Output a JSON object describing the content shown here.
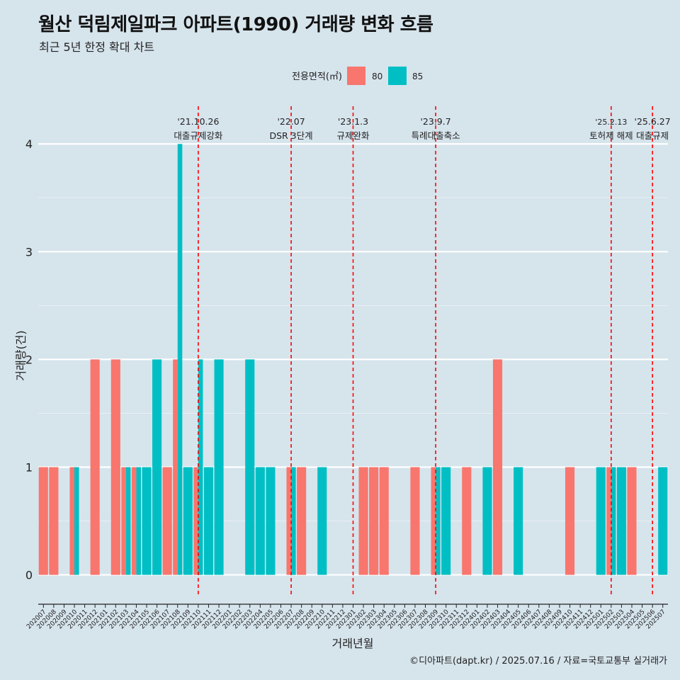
{
  "title": "월산 덕림제일파크 아파트(1990) 거래량 변화 흐름",
  "subtitle": "최근 5년 한정 확대 차트",
  "caption": "©디아파트(dapt.kr) / 2025.07.16 / 자료=국토교통부 실거래가",
  "colors": {
    "s80": "#f8766d",
    "s85": "#00bfc4",
    "bg": "#d6e4ec",
    "grid": "#ffffff",
    "vline": "#ff0000"
  },
  "chart_data": {
    "type": "bar",
    "xlabel": "거래년월",
    "ylabel": "거래량(건)",
    "ylim": [
      -0.2,
      4.35
    ],
    "yticks": [
      0,
      1,
      2,
      3,
      4
    ],
    "legend": {
      "title": "전용면적(㎡)",
      "position": "top",
      "entries": [
        "80",
        "85"
      ]
    },
    "grid": true,
    "categories": [
      "202007",
      "202008",
      "202009",
      "202010",
      "202011",
      "202012",
      "202101",
      "202102",
      "202103",
      "202104",
      "202105",
      "202106",
      "202107",
      "202108",
      "202109",
      "202110",
      "202111",
      "202112",
      "202201",
      "202202",
      "202203",
      "202204",
      "202205",
      "202206",
      "202207",
      "202208",
      "202209",
      "202210",
      "202211",
      "202212",
      "202301",
      "202302",
      "202303",
      "202304",
      "202305",
      "202306",
      "202307",
      "202308",
      "202309",
      "202310",
      "202311",
      "202312",
      "202401",
      "202402",
      "202403",
      "202404",
      "202405",
      "202406",
      "202407",
      "202408",
      "202409",
      "202410",
      "202411",
      "202412",
      "202501",
      "202502",
      "202503",
      "202504",
      "202505",
      "202506",
      "202507"
    ],
    "series": [
      {
        "name": "80",
        "values": [
          1,
          1,
          0,
          1,
          0,
          2,
          0,
          2,
          1,
          1,
          0,
          0,
          1,
          2,
          0,
          1,
          0,
          0,
          0,
          0,
          0,
          0,
          0,
          0,
          1,
          1,
          0,
          0,
          0,
          0,
          0,
          1,
          1,
          1,
          0,
          0,
          1,
          0,
          1,
          0,
          0,
          1,
          0,
          0,
          2,
          0,
          0,
          0,
          0,
          0,
          0,
          1,
          0,
          0,
          0,
          1,
          0,
          1,
          0,
          0,
          0
        ]
      },
      {
        "name": "85",
        "values": [
          0,
          0,
          0,
          1,
          0,
          0,
          0,
          0,
          1,
          1,
          1,
          2,
          0,
          4,
          1,
          2,
          1,
          2,
          0,
          0,
          2,
          1,
          1,
          0,
          1,
          0,
          0,
          1,
          0,
          0,
          0,
          0,
          0,
          0,
          0,
          0,
          0,
          0,
          1,
          1,
          0,
          0,
          0,
          1,
          0,
          0,
          1,
          0,
          0,
          0,
          0,
          0,
          0,
          0,
          1,
          1,
          1,
          0,
          0,
          0,
          1
        ]
      }
    ],
    "annotations": [
      {
        "category": "202110",
        "date": "'21.10.26",
        "label": "대출규제강화"
      },
      {
        "category": "202207",
        "date": "'22.07",
        "label": "DSR 3단계"
      },
      {
        "category": "202301",
        "date": "'23.1.3",
        "label": "규제완화"
      },
      {
        "category": "202309",
        "date": "'23.9.7",
        "label": "특례대출축소"
      },
      {
        "category": "202502",
        "date": "'25.2.13",
        "label": "토허제 해제"
      },
      {
        "category": "202506",
        "date": "'25.6.27",
        "label": "대출규제"
      }
    ]
  }
}
